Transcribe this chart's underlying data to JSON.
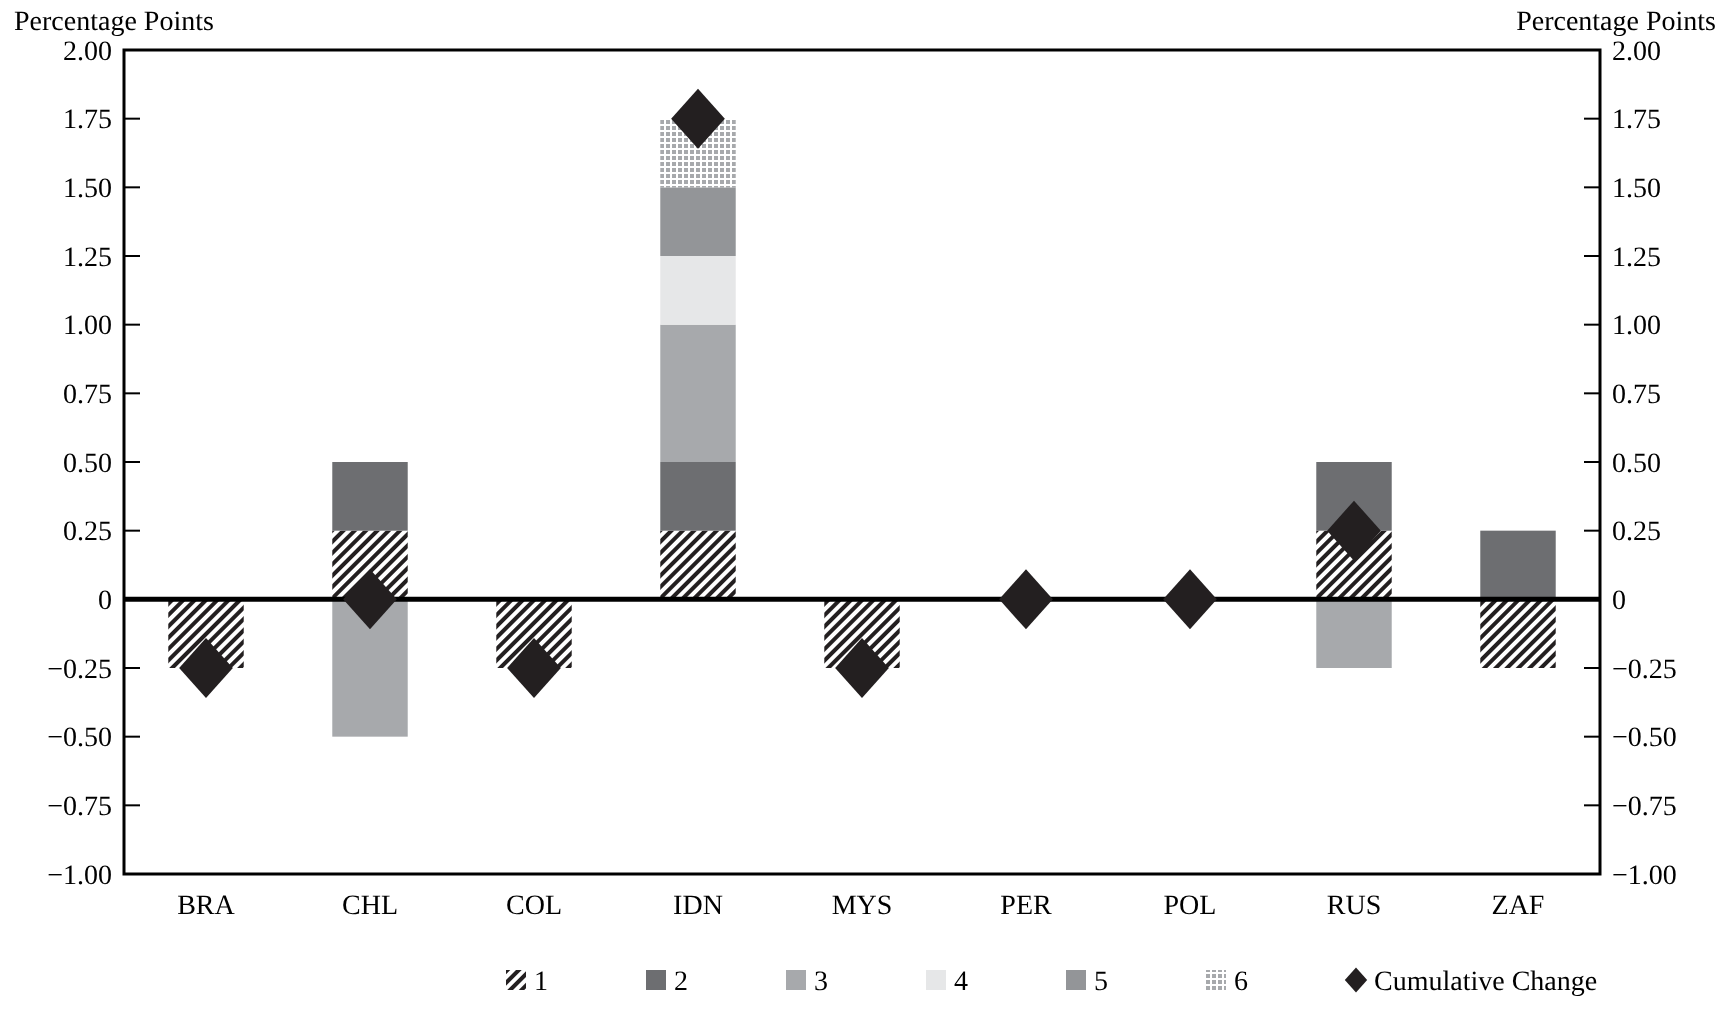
{
  "chart_data": {
    "type": "bar",
    "stacked": true,
    "ylabel": "Percentage Points",
    "y2label": "Percentage Points",
    "categories": [
      "BRA",
      "CHL",
      "COL",
      "IDN",
      "MYS",
      "PER",
      "POL",
      "RUS",
      "ZAF"
    ],
    "series": [
      {
        "name": "1",
        "color": "#231f20",
        "values": [
          -0.25,
          0.25,
          -0.25,
          0.25,
          -0.25,
          0,
          0,
          0.25,
          -0.25
        ]
      },
      {
        "name": "2",
        "color": "#6d6e71",
        "values": [
          0,
          0.25,
          0,
          0.25,
          0,
          0,
          0,
          0.25,
          0.25
        ]
      },
      {
        "name": "3",
        "color": "#a7a9ac",
        "values": [
          0,
          -0.5,
          0,
          0.5,
          0,
          0,
          0,
          -0.25,
          0
        ]
      },
      {
        "name": "4",
        "color": "#e6e7e8",
        "values": [
          0,
          0,
          0,
          0.25,
          0,
          0,
          0,
          0,
          0
        ]
      },
      {
        "name": "5",
        "color": "#939598",
        "values": [
          0,
          0,
          0,
          0.25,
          0,
          0,
          0,
          0,
          0
        ]
      },
      {
        "name": "6",
        "color": "#a7a9ac",
        "values": [
          0,
          0,
          0,
          0.25,
          0,
          0,
          0,
          0,
          0
        ]
      },
      {
        "name": "Cumulative Change",
        "type": "scatter",
        "marker": "diamond",
        "color": "#231f20",
        "values": [
          -0.25,
          0,
          -0.25,
          1.75,
          -0.25,
          0,
          0,
          0.25,
          null
        ]
      }
    ],
    "ylim": [
      -1,
      2
    ],
    "yticks": [
      {
        "value": -1,
        "label": "−1.00"
      },
      {
        "value": -0.75,
        "label": "−0.75"
      },
      {
        "value": -0.5,
        "label": "−0.50"
      },
      {
        "value": -0.25,
        "label": "−0.25"
      },
      0,
      {
        "value": 0.25,
        "label": "0.25"
      },
      {
        "value": 0.5,
        "label": "0.50"
      },
      {
        "value": 0.75,
        "label": "0.75"
      },
      {
        "value": 1,
        "label": "1.00"
      },
      {
        "value": 1.25,
        "label": "1.25"
      },
      {
        "value": 1.5,
        "label": "1.50"
      },
      {
        "value": 1.75,
        "label": "1.75"
      },
      {
        "value": 2,
        "label": "2.00"
      }
    ],
    "y2lim": [
      -1,
      2
    ],
    "y2ticks": [
      {
        "value": -1,
        "label": "−1.00"
      },
      {
        "value": -0.75,
        "label": "−0.75"
      },
      {
        "value": -0.5,
        "label": "−0.50"
      },
      {
        "value": -0.25,
        "label": "−0.25"
      },
      0,
      {
        "value": 0.25,
        "label": "0.25"
      },
      {
        "value": 0.5,
        "label": "0.50"
      },
      {
        "value": 0.75,
        "label": "0.75"
      },
      {
        "value": 1,
        "label": "1.00"
      },
      {
        "value": 1.25,
        "label": "1.25"
      },
      {
        "value": 1.5,
        "label": "1.50"
      },
      {
        "value": 1.75,
        "label": "1.75"
      },
      {
        "value": 2,
        "label": "2.00"
      }
    ],
    "legend": "bottom"
  }
}
